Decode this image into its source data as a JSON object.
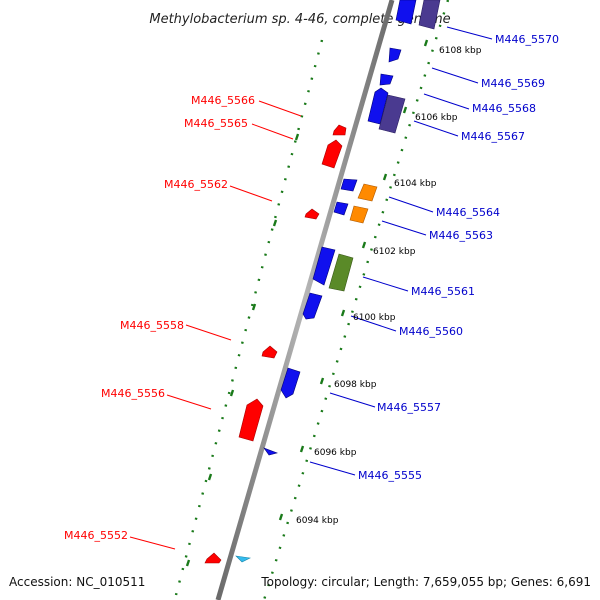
{
  "title": "Methylobacterium sp. 4-46, complete genome",
  "footer": {
    "accession": "Accession: NC_010511",
    "topology": "Topology: circular; Length: 7,659,055 bp; Genes: 6,691"
  },
  "colors": {
    "reverse_label": "#ff0000",
    "forward_label": "#0000cc",
    "backbone": "#8a8a8a",
    "tick": "#1a7a1a",
    "gene_red": "#ff0000",
    "gene_blue": "#1010ee",
    "gene_navy": "#4a3a90",
    "gene_orange": "#ff8a00",
    "gene_olive": "#5a8a28",
    "gene_cyan": "#33bbee"
  },
  "scale": [
    "6094 kbp",
    "6096 kbp",
    "6098 kbp",
    "6100 kbp",
    "6102 kbp",
    "6104 kbp",
    "6106 kbp",
    "6108 kbp"
  ],
  "genes_reverse": [
    {
      "label": "M446_5566"
    },
    {
      "label": "M446_5565"
    },
    {
      "label": "M446_5562"
    },
    {
      "label": "M446_5558"
    },
    {
      "label": "M446_5556"
    },
    {
      "label": "M446_5552"
    }
  ],
  "genes_forward": [
    {
      "label": "M446_5570"
    },
    {
      "label": "M446_5569"
    },
    {
      "label": "M446_5568"
    },
    {
      "label": "M446_5567"
    },
    {
      "label": "M446_5564"
    },
    {
      "label": "M446_5563"
    },
    {
      "label": "M446_5561"
    },
    {
      "label": "M446_5560"
    },
    {
      "label": "M446_5557"
    },
    {
      "label": "M446_5555"
    }
  ]
}
